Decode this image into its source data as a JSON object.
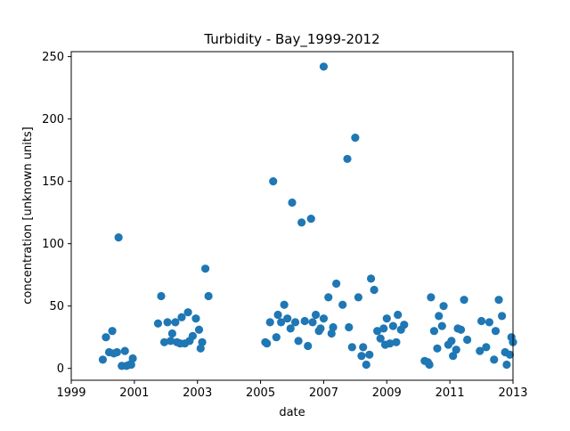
{
  "chart_data": {
    "type": "scatter",
    "title": "Turbidity - Bay_1999-2012",
    "xlabel": "date",
    "ylabel": "concentration [unknown units]",
    "xlim": [
      1999,
      2013
    ],
    "ylim": [
      -9.5,
      254
    ],
    "x_ticks": [
      1999,
      2001,
      2003,
      2005,
      2007,
      2009,
      2011,
      2013
    ],
    "x_tick_labels": [
      "1999",
      "2001",
      "2003",
      "2005",
      "2007",
      "2009",
      "2011",
      "2013"
    ],
    "y_ticks": [
      0,
      50,
      100,
      150,
      200,
      250
    ],
    "y_tick_labels": [
      "0",
      "50",
      "100",
      "150",
      "200",
      "250"
    ],
    "grid": false,
    "legend": "none",
    "series": [
      {
        "color": "#1f77b4",
        "points": [
          [
            2000.0,
            7
          ],
          [
            2000.1,
            25
          ],
          [
            2000.2,
            13
          ],
          [
            2000.3,
            30
          ],
          [
            2000.35,
            12
          ],
          [
            2000.45,
            13
          ],
          [
            2000.5,
            105
          ],
          [
            2000.6,
            2
          ],
          [
            2000.7,
            14
          ],
          [
            2000.75,
            2
          ],
          [
            2000.85,
            3
          ],
          [
            2000.9,
            3
          ],
          [
            2000.95,
            8
          ],
          [
            2001.75,
            36
          ],
          [
            2001.85,
            58
          ],
          [
            2001.95,
            21
          ],
          [
            2002.05,
            37
          ],
          [
            2002.15,
            22
          ],
          [
            2002.2,
            28
          ],
          [
            2002.3,
            37
          ],
          [
            2002.35,
            21
          ],
          [
            2002.45,
            20
          ],
          [
            2002.5,
            41
          ],
          [
            2002.6,
            20
          ],
          [
            2002.7,
            45
          ],
          [
            2002.75,
            22
          ],
          [
            2002.85,
            26
          ],
          [
            2002.95,
            40
          ],
          [
            2003.05,
            31
          ],
          [
            2003.1,
            16
          ],
          [
            2003.15,
            21
          ],
          [
            2003.25,
            80
          ],
          [
            2003.35,
            58
          ],
          [
            2005.15,
            21
          ],
          [
            2005.2,
            20
          ],
          [
            2005.3,
            37
          ],
          [
            2005.4,
            150
          ],
          [
            2005.5,
            25
          ],
          [
            2005.55,
            43
          ],
          [
            2005.65,
            37
          ],
          [
            2005.75,
            51
          ],
          [
            2005.85,
            40
          ],
          [
            2005.95,
            32
          ],
          [
            2006.0,
            133
          ],
          [
            2006.1,
            37
          ],
          [
            2006.2,
            22
          ],
          [
            2006.3,
            117
          ],
          [
            2006.4,
            38
          ],
          [
            2006.5,
            18
          ],
          [
            2006.6,
            120
          ],
          [
            2006.65,
            37
          ],
          [
            2006.75,
            43
          ],
          [
            2006.85,
            30
          ],
          [
            2006.9,
            32
          ],
          [
            2007.0,
            40
          ],
          [
            2007.0,
            242
          ],
          [
            2007.15,
            57
          ],
          [
            2007.25,
            28
          ],
          [
            2007.3,
            33
          ],
          [
            2007.4,
            68
          ],
          [
            2007.6,
            51
          ],
          [
            2007.75,
            168
          ],
          [
            2007.8,
            33
          ],
          [
            2007.9,
            17
          ],
          [
            2008.0,
            185
          ],
          [
            2008.1,
            57
          ],
          [
            2008.2,
            10
          ],
          [
            2008.25,
            17
          ],
          [
            2008.35,
            3
          ],
          [
            2008.45,
            11
          ],
          [
            2008.5,
            72
          ],
          [
            2008.6,
            63
          ],
          [
            2008.7,
            30
          ],
          [
            2008.8,
            24
          ],
          [
            2008.9,
            32
          ],
          [
            2008.95,
            19
          ],
          [
            2009.0,
            40
          ],
          [
            2009.1,
            20
          ],
          [
            2009.2,
            34
          ],
          [
            2009.3,
            21
          ],
          [
            2009.35,
            43
          ],
          [
            2009.45,
            31
          ],
          [
            2009.55,
            35
          ],
          [
            2010.2,
            6
          ],
          [
            2010.3,
            5
          ],
          [
            2010.35,
            3
          ],
          [
            2010.4,
            57
          ],
          [
            2010.5,
            30
          ],
          [
            2010.6,
            16
          ],
          [
            2010.65,
            42
          ],
          [
            2010.75,
            34
          ],
          [
            2010.8,
            50
          ],
          [
            2010.95,
            19
          ],
          [
            2011.05,
            22
          ],
          [
            2011.1,
            10
          ],
          [
            2011.2,
            15
          ],
          [
            2011.25,
            32
          ],
          [
            2011.35,
            31
          ],
          [
            2011.45,
            55
          ],
          [
            2011.55,
            23
          ],
          [
            2011.95,
            14
          ],
          [
            2012.0,
            38
          ],
          [
            2012.15,
            17
          ],
          [
            2012.25,
            37
          ],
          [
            2012.4,
            7
          ],
          [
            2012.45,
            30
          ],
          [
            2012.55,
            55
          ],
          [
            2012.65,
            42
          ],
          [
            2012.75,
            13
          ],
          [
            2012.8,
            3
          ],
          [
            2012.9,
            11
          ],
          [
            2012.95,
            25
          ],
          [
            2013.0,
            21
          ]
        ]
      }
    ]
  }
}
